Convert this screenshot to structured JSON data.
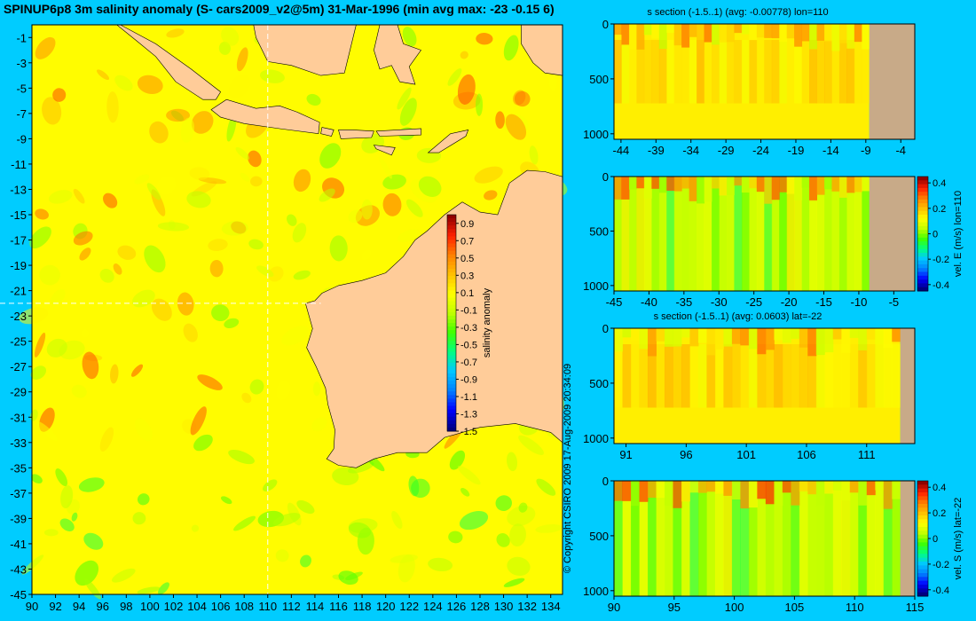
{
  "title": "SPINUP6p8 3m salinity anomaly (S- cars2009_v2@5m) 31-Mar-1996 (min avg max: -23 -0.15 6)",
  "copyright": "© Copyright CSIRO 2009   17-Aug-2009 20:34:09",
  "colors": {
    "background": "#00ccff",
    "land": "#ffcc99",
    "section_land": "#c8aa88",
    "colormap": [
      "#000080",
      "#0000ff",
      "#0080ff",
      "#00c8ff",
      "#00ff80",
      "#40ff00",
      "#c0ff00",
      "#ffff00",
      "#ffc000",
      "#ff8000",
      "#ff2000",
      "#900000"
    ]
  },
  "chart_data": [
    {
      "type": "heatmap",
      "id": "map",
      "title": "",
      "xlabel": "",
      "ylabel": "",
      "xlim": [
        90,
        135
      ],
      "ylim": [
        -45,
        0
      ],
      "x_ticks": [
        "90",
        "92",
        "94",
        "96",
        "98",
        "100",
        "102",
        "104",
        "106",
        "108",
        "110",
        "112",
        "114",
        "116",
        "118",
        "120",
        "122",
        "124",
        "126",
        "128",
        "130",
        "132",
        "134"
      ],
      "y_ticks": [
        "-1",
        "-3",
        "-5",
        "-7",
        "-9",
        "-11",
        "-13",
        "-15",
        "-17",
        "-19",
        "-21",
        "-23",
        "-25",
        "-27",
        "-29",
        "-31",
        "-33",
        "-35",
        "-37",
        "-39",
        "-41",
        "-43",
        "-45"
      ],
      "section_lines": {
        "lon": 110,
        "lat": -22
      },
      "colorbar": {
        "label": "salinity anomaly",
        "range": [
          -1.5,
          1.0
        ],
        "ticks": [
          "0.9",
          "0.7",
          "0.5",
          "0.3",
          "0.1",
          "-0.1",
          "-0.3",
          "-0.5",
          "-0.7",
          "-0.9",
          "-1.1",
          "-1.3",
          "-1.5"
        ]
      }
    },
    {
      "type": "heatmap",
      "id": "section1",
      "title": "s section (-1.5..1) (avg: -0.00778) lon=110",
      "xlim": [
        -45,
        -2
      ],
      "ylim": [
        1050,
        0
      ],
      "x_ticks": [
        "-44",
        "-39",
        "-34",
        "-29",
        "-24",
        "-19",
        "-14",
        "-9",
        "-4"
      ],
      "y_ticks": [
        "0",
        "500",
        "1000"
      ],
      "land_from": -8.5
    },
    {
      "type": "heatmap",
      "id": "section2",
      "title": "",
      "xlim": [
        -45,
        -2
      ],
      "ylim": [
        1050,
        0
      ],
      "x_ticks": [
        "-45",
        "-40",
        "-35",
        "-30",
        "-25",
        "-20",
        "-15",
        "-10",
        "-5"
      ],
      "y_ticks": [
        "0",
        "500",
        "1000"
      ],
      "land_from": -8.5,
      "colorbar": {
        "label": "vel. E (m/s) lon=110",
        "range": [
          -0.45,
          0.45
        ],
        "ticks": [
          "0.4",
          "0.2",
          "0",
          "-0.2",
          "-0.4"
        ]
      }
    },
    {
      "type": "heatmap",
      "id": "section3",
      "title": "s section (-1.5..1) (avg: 0.0603) lat=-22",
      "xlim": [
        90,
        115
      ],
      "ylim": [
        1050,
        0
      ],
      "x_ticks": [
        "91",
        "96",
        "101",
        "106",
        "111"
      ],
      "y_ticks": [
        "0",
        "500",
        "1000"
      ],
      "land_from": 113.8
    },
    {
      "type": "heatmap",
      "id": "section4",
      "title": "",
      "xlim": [
        90,
        115
      ],
      "ylim": [
        1050,
        0
      ],
      "x_ticks": [
        "90",
        "95",
        "100",
        "105",
        "110",
        "115"
      ],
      "y_ticks": [
        "0",
        "500",
        "1000"
      ],
      "land_from": 113.8,
      "colorbar": {
        "label": "vel. S (m/s) lat=-22",
        "range": [
          -0.45,
          0.45
        ],
        "ticks": [
          "0.4",
          "0.2",
          "0",
          "-0.2",
          "-0.4"
        ]
      }
    }
  ]
}
